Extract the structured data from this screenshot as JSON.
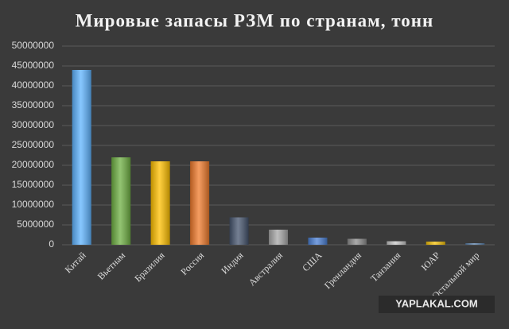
{
  "chart_data": {
    "type": "bar",
    "title": "Мировые запасы РЗМ по странам, тонн",
    "categories": [
      "Китай",
      "Вьетнам",
      "Бразилия",
      "Россия",
      "Индия",
      "Австралия",
      "США",
      "Гренландия",
      "Танзания",
      "ЮАР",
      "Остальной мир"
    ],
    "values": [
      44000000,
      22000000,
      21000000,
      21000000,
      6900000,
      3800000,
      1800000,
      1500000,
      890000,
      790000,
      400000
    ],
    "colors": [
      "#5fb4ff",
      "#6fb043",
      "#ffc000",
      "#f07b2c",
      "#46556e",
      "#a8a8a8",
      "#4a7fd4",
      "#8e8e8e",
      "#c8c8c8",
      "#f5c20a",
      "#5a7fa8"
    ],
    "ylim": [
      0,
      50000000
    ],
    "yticks": [
      0,
      5000000,
      10000000,
      15000000,
      20000000,
      25000000,
      30000000,
      35000000,
      40000000,
      45000000,
      50000000
    ],
    "grid": true
  },
  "watermark": "YAPLAKAL.COM"
}
